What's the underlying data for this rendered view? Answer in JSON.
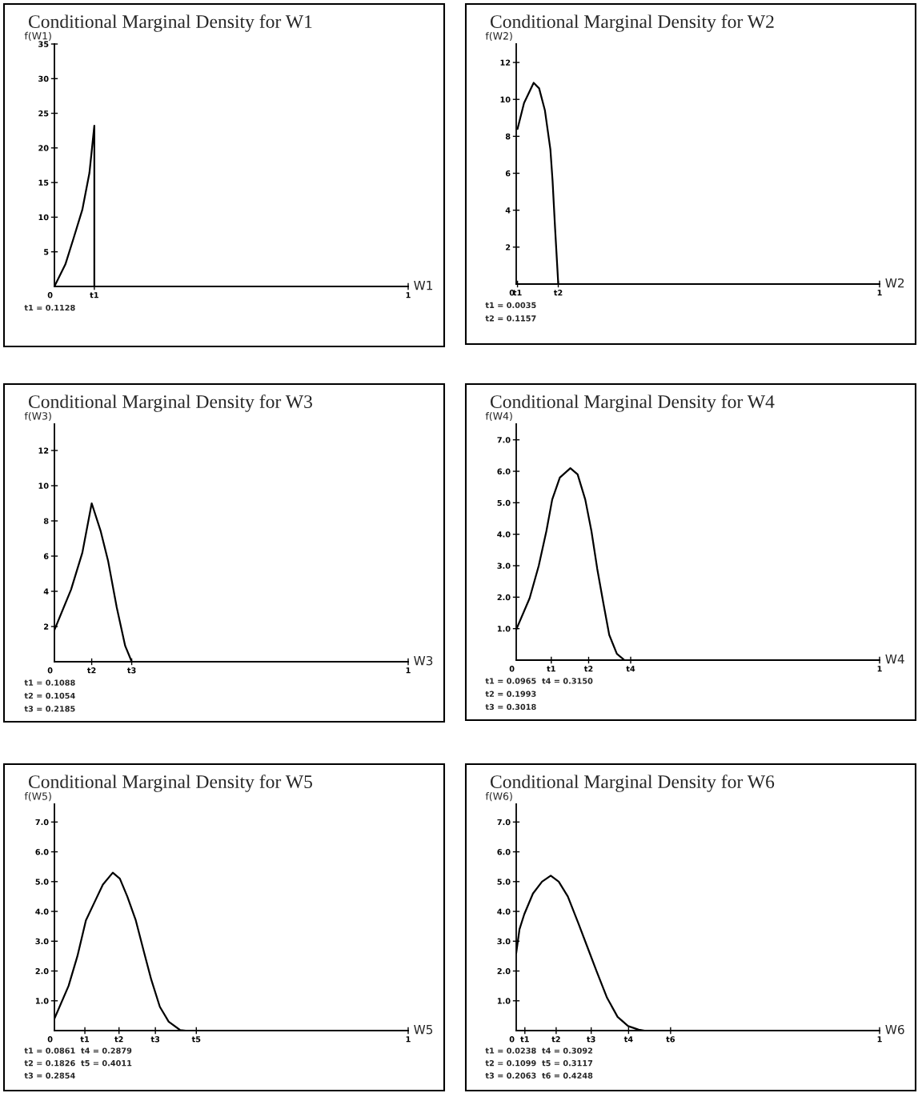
{
  "chart_data": [
    {
      "type": "line",
      "title": "Conditional Marginal Density for W1",
      "ylabel": "f(W1)",
      "xlabel": "W1",
      "xlim": [
        0,
        1
      ],
      "ylim": [
        0,
        35
      ],
      "xticks": [
        0,
        {
          "value": 0.1128,
          "label": "t1"
        },
        1
      ],
      "yticks": [
        {
          "value": 0,
          "label": null
        },
        5,
        10,
        15,
        20,
        25,
        30,
        35
      ],
      "series": [
        {
          "color": "#000000",
          "x": [
            0,
            0.031,
            0.055,
            0.079,
            0.099,
            0.1128,
            0.1128
          ],
          "values": [
            0,
            3.2,
            7.1,
            11.1,
            16.4,
            23.2,
            0
          ]
        }
      ],
      "annotations": [
        "t1 = 0.1128"
      ]
    },
    {
      "type": "line",
      "title": "Conditional Marginal Density for W2",
      "ylabel": "f(W2)",
      "xlabel": "W2",
      "xlim": [
        0,
        1
      ],
      "ylim": [
        0,
        13
      ],
      "xticks": [
        0,
        {
          "value": 0.0035,
          "label": "t1"
        },
        {
          "value": 0.1157,
          "label": "t2"
        },
        1
      ],
      "yticks": [
        {
          "value": 0,
          "label": null
        },
        2,
        4,
        6,
        8,
        10,
        12
      ],
      "series": [
        {
          "color": "#000000",
          "x": [
            0.0035,
            0.0215,
            0.048,
            0.063,
            0.079,
            0.094,
            0.1,
            0.107,
            0.1157
          ],
          "values": [
            8.4,
            9.8,
            10.9,
            10.6,
            9.4,
            7.3,
            5.6,
            3.0,
            0
          ]
        }
      ],
      "annotations": [
        "t1 = 0.0035",
        "t2 = 0.1157"
      ]
    },
    {
      "type": "line",
      "title": "Conditional Marginal Density for W3",
      "ylabel": "f(W3)",
      "xlabel": "W3",
      "xlim": [
        0,
        1
      ],
      "ylim": [
        0,
        13.5
      ],
      "xticks": [
        0,
        {
          "value": 0.1054,
          "label": "t2"
        },
        {
          "value": 0.2185,
          "label": "t3"
        },
        1
      ],
      "yticks": [
        {
          "value": 0,
          "label": null
        },
        2,
        4,
        6,
        8,
        10,
        12
      ],
      "series": [
        {
          "color": "#000000",
          "x": [
            0,
            0.047,
            0.079,
            0.1054,
            0.131,
            0.152,
            0.176,
            0.2,
            0.2185
          ],
          "values": [
            1.8,
            4.1,
            6.2,
            9.0,
            7.4,
            5.7,
            3.1,
            0.9,
            0
          ]
        }
      ],
      "annotations": [
        "t1 = 0.1088",
        "t2 = 0.1054",
        "t3 = 0.2185"
      ]
    },
    {
      "type": "line",
      "title": "Conditional Marginal Density for W4",
      "ylabel": "f(W4)",
      "xlabel": "W4",
      "xlim": [
        0,
        1
      ],
      "ylim": [
        0,
        7.5
      ],
      "xticks": [
        0,
        {
          "value": 0.0965,
          "label": "t1"
        },
        {
          "value": 0.1993,
          "label": "t2"
        },
        {
          "value": 0.315,
          "label": "t4"
        },
        1
      ],
      "yticks": [
        {
          "value": 0,
          "label": null
        },
        {
          "value": 1,
          "label": "1.0"
        },
        {
          "value": 2,
          "label": "2.0"
        },
        {
          "value": 3,
          "label": "3.0"
        },
        {
          "value": 4,
          "label": "4.0"
        },
        {
          "value": 5,
          "label": "5.0"
        },
        {
          "value": 6,
          "label": "6.0"
        },
        {
          "value": 7,
          "label": "7.0"
        }
      ],
      "series": [
        {
          "color": "#000000",
          "x": [
            0,
            0.037,
            0.062,
            0.083,
            0.099,
            0.12,
            0.149,
            0.169,
            0.19,
            0.207,
            0.223,
            0.24,
            0.256,
            0.277,
            0.298
          ],
          "values": [
            0.97,
            1.97,
            3.0,
            4.1,
            5.1,
            5.8,
            6.1,
            5.9,
            5.1,
            4.1,
            2.9,
            1.8,
            0.8,
            0.2,
            0
          ]
        }
      ],
      "annotations": [
        "t1 = 0.0965  t4 = 0.3150",
        "t2 = 0.1993",
        "t3 = 0.3018"
      ]
    },
    {
      "type": "line",
      "title": "Conditional Marginal Density for W5",
      "ylabel": "f(W5)",
      "xlabel": "W5",
      "xlim": [
        0,
        1
      ],
      "ylim": [
        0,
        7.6
      ],
      "xticks": [
        0,
        {
          "value": 0.0861,
          "label": "t1"
        },
        {
          "value": 0.1826,
          "label": "t2"
        },
        {
          "value": 0.2854,
          "label": "t3"
        },
        {
          "value": 0.4011,
          "label": "t5"
        },
        1
      ],
      "yticks": [
        {
          "value": 0,
          "label": null
        },
        {
          "value": 1,
          "label": "1.0"
        },
        {
          "value": 2,
          "label": "2.0"
        },
        {
          "value": 3,
          "label": "3.0"
        },
        {
          "value": 4,
          "label": "4.0"
        },
        {
          "value": 5,
          "label": "5.0"
        },
        {
          "value": 6,
          "label": "6.0"
        },
        {
          "value": 7,
          "label": "7.0"
        }
      ],
      "series": [
        {
          "color": "#000000",
          "x": [
            0,
            0.04,
            0.065,
            0.089,
            0.113,
            0.137,
            0.165,
            0.185,
            0.206,
            0.23,
            0.254,
            0.274,
            0.298,
            0.323,
            0.355,
            0.371
          ],
          "values": [
            0.4,
            1.5,
            2.5,
            3.7,
            4.3,
            4.9,
            5.3,
            5.1,
            4.5,
            3.7,
            2.6,
            1.7,
            0.8,
            0.3,
            0.02,
            0
          ]
        }
      ],
      "annotations": [
        "t1 = 0.0861  t4 = 0.2879",
        "t2 = 0.1826  t5 = 0.4011",
        "t3 = 0.2854"
      ]
    },
    {
      "type": "line",
      "title": "Conditional Marginal Density for W6",
      "ylabel": "f(W6)",
      "xlabel": "W6",
      "xlim": [
        0,
        1
      ],
      "ylim": [
        0,
        7.6
      ],
      "xticks": [
        0,
        {
          "value": 0.0238,
          "label": "t1"
        },
        {
          "value": 0.1099,
          "label": "t2"
        },
        {
          "value": 0.2063,
          "label": "t3"
        },
        {
          "value": 0.3092,
          "label": "t4"
        },
        {
          "value": 0.4248,
          "label": "t6"
        },
        1
      ],
      "yticks": [
        {
          "value": 0,
          "label": null
        },
        {
          "value": 1,
          "label": "1.0"
        },
        {
          "value": 2,
          "label": "2.0"
        },
        {
          "value": 3,
          "label": "3.0"
        },
        {
          "value": 4,
          "label": "4.0"
        },
        {
          "value": 5,
          "label": "5.0"
        },
        {
          "value": 6,
          "label": "6.0"
        },
        {
          "value": 7,
          "label": "7.0"
        }
      ],
      "series": [
        {
          "color": "#000000",
          "x": [
            0,
            0.009,
            0.022,
            0.046,
            0.071,
            0.095,
            0.117,
            0.142,
            0.171,
            0.196,
            0.221,
            0.25,
            0.279,
            0.308,
            0.337,
            0.353
          ],
          "values": [
            2.6,
            3.4,
            3.9,
            4.6,
            5.0,
            5.2,
            5.0,
            4.5,
            3.6,
            2.8,
            2.0,
            1.1,
            0.46,
            0.15,
            0.03,
            0
          ]
        }
      ],
      "annotations": [
        "t1 = 0.0238  t4 = 0.3092",
        "t2 = 0.1099  t5 = 0.3117",
        "t3 = 0.2063  t6 = 0.4248"
      ]
    }
  ]
}
